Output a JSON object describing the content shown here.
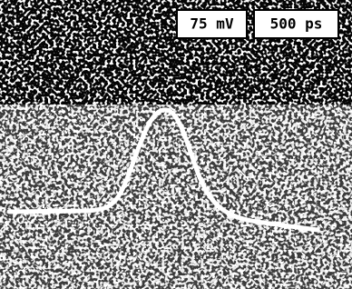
{
  "display": {
    "voltage_scale": "75 mV",
    "time_scale": "500 ps"
  }
}
